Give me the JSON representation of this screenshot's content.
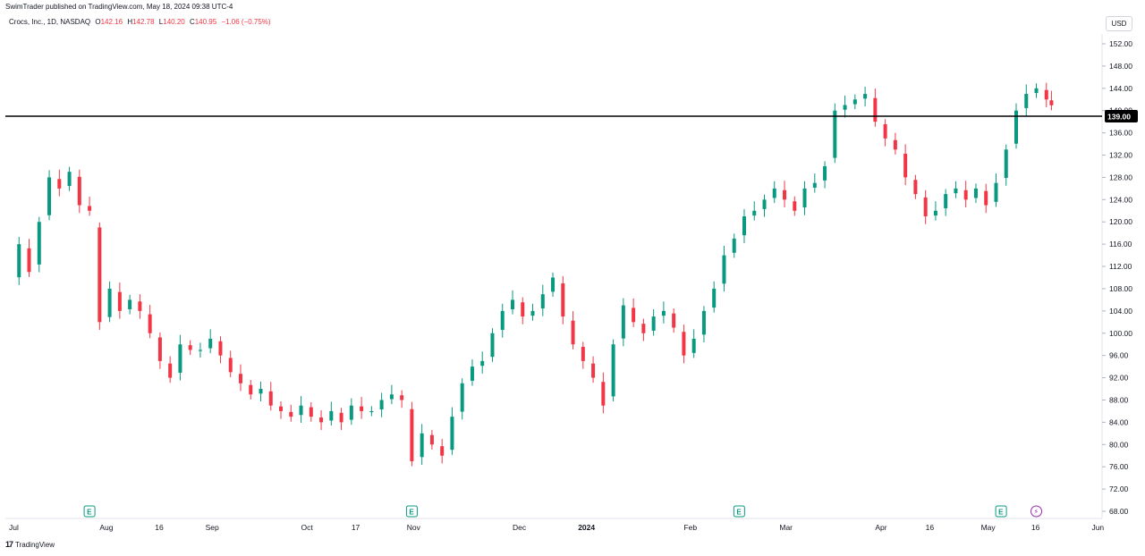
{
  "header": {
    "published": "SwimTrader published on TradingView.com, May 18, 2024 09:38 UTC-4",
    "symbol": "Crocs, Inc., 1D, NASDAQ",
    "o_label": "O",
    "o_value": "142.16",
    "h_label": "H",
    "h_value": "142.78",
    "l_label": "L",
    "l_value": "140.20",
    "c_label": "C",
    "c_value": "140.95",
    "change": "−1.06 (−0.75%)",
    "currency": "USD"
  },
  "brand": {
    "logo": "17",
    "name": "TradingView"
  },
  "colors": {
    "up": "#089981",
    "down": "#f23645",
    "earnings": "#089981",
    "dividend": "#9c27b0"
  },
  "chart_data": {
    "type": "candlestick",
    "title": "Crocs, Inc., 1D, NASDAQ",
    "currency": "USD",
    "ylim": [
      68,
      154
    ],
    "y_ticks": [
      "152.00",
      "148.00",
      "144.00",
      "140.00",
      "136.00",
      "132.00",
      "128.00",
      "124.00",
      "120.00",
      "116.00",
      "112.00",
      "108.00",
      "104.00",
      "100.00",
      "96.00",
      "92.00",
      "88.00",
      "84.00",
      "80.00",
      "76.00",
      "72.00",
      "68.00"
    ],
    "x_ticks": [
      {
        "label": "Jul",
        "day": 0,
        "bold": false
      },
      {
        "label": "Aug",
        "day": 18,
        "bold": false
      },
      {
        "label": "16",
        "day": 29,
        "bold": false
      },
      {
        "label": "Sep",
        "day": 39,
        "bold": false
      },
      {
        "label": "Oct",
        "day": 58,
        "bold": false
      },
      {
        "label": "17",
        "day": 68,
        "bold": false
      },
      {
        "label": "Nov",
        "day": 79,
        "bold": false
      },
      {
        "label": "Dec",
        "day": 100,
        "bold": false
      },
      {
        "label": "2024",
        "day": 113,
        "bold": true
      },
      {
        "label": "Feb",
        "day": 134,
        "bold": false
      },
      {
        "label": "Mar",
        "day": 153,
        "bold": false
      },
      {
        "label": "Apr",
        "day": 172,
        "bold": false
      },
      {
        "label": "16",
        "day": 182,
        "bold": false
      },
      {
        "label": "May",
        "day": 193,
        "bold": false
      },
      {
        "label": "16",
        "day": 203,
        "bold": false
      },
      {
        "label": "Jun",
        "day": 215,
        "bold": false
      }
    ],
    "horizontal_line": {
      "value": 139.0,
      "label": "139.00"
    },
    "events": [
      {
        "type": "earnings",
        "label": "E",
        "day": 16
      },
      {
        "type": "earnings",
        "label": "E",
        "day": 80
      },
      {
        "type": "earnings",
        "label": "E",
        "day": 145
      },
      {
        "type": "earnings",
        "label": "E",
        "day": 197
      },
      {
        "type": "dividend",
        "label": "⚡",
        "day": 204
      }
    ],
    "close_series": [
      {
        "day": 0,
        "close": 109
      },
      {
        "day": 2,
        "close": 116
      },
      {
        "day": 4,
        "close": 111
      },
      {
        "day": 6,
        "close": 120
      },
      {
        "day": 8,
        "close": 128
      },
      {
        "day": 10,
        "close": 126
      },
      {
        "day": 12,
        "close": 129
      },
      {
        "day": 14,
        "close": 123
      },
      {
        "day": 16,
        "close": 122
      },
      {
        "day": 18,
        "close": 102
      },
      {
        "day": 20,
        "close": 108
      },
      {
        "day": 22,
        "close": 104
      },
      {
        "day": 24,
        "close": 106
      },
      {
        "day": 26,
        "close": 104
      },
      {
        "day": 28,
        "close": 100
      },
      {
        "day": 30,
        "close": 95
      },
      {
        "day": 32,
        "close": 92
      },
      {
        "day": 34,
        "close": 98
      },
      {
        "day": 36,
        "close": 97
      },
      {
        "day": 38,
        "close": 97
      },
      {
        "day": 40,
        "close": 99
      },
      {
        "day": 42,
        "close": 96
      },
      {
        "day": 44,
        "close": 93
      },
      {
        "day": 46,
        "close": 91
      },
      {
        "day": 48,
        "close": 89
      },
      {
        "day": 50,
        "close": 90
      },
      {
        "day": 52,
        "close": 87
      },
      {
        "day": 54,
        "close": 86
      },
      {
        "day": 56,
        "close": 85
      },
      {
        "day": 58,
        "close": 87
      },
      {
        "day": 60,
        "close": 85
      },
      {
        "day": 62,
        "close": 84
      },
      {
        "day": 64,
        "close": 86
      },
      {
        "day": 66,
        "close": 84
      },
      {
        "day": 68,
        "close": 87
      },
      {
        "day": 70,
        "close": 86
      },
      {
        "day": 72,
        "close": 86
      },
      {
        "day": 74,
        "close": 88
      },
      {
        "day": 76,
        "close": 89
      },
      {
        "day": 78,
        "close": 88
      },
      {
        "day": 80,
        "close": 77
      },
      {
        "day": 82,
        "close": 82
      },
      {
        "day": 84,
        "close": 80
      },
      {
        "day": 86,
        "close": 78
      },
      {
        "day": 88,
        "close": 85
      },
      {
        "day": 90,
        "close": 91
      },
      {
        "day": 92,
        "close": 94
      },
      {
        "day": 94,
        "close": 95
      },
      {
        "day": 96,
        "close": 100
      },
      {
        "day": 98,
        "close": 104
      },
      {
        "day": 100,
        "close": 106
      },
      {
        "day": 102,
        "close": 103
      },
      {
        "day": 104,
        "close": 104
      },
      {
        "day": 106,
        "close": 107
      },
      {
        "day": 108,
        "close": 110
      },
      {
        "day": 110,
        "close": 103
      },
      {
        "day": 112,
        "close": 98
      },
      {
        "day": 114,
        "close": 95
      },
      {
        "day": 116,
        "close": 92
      },
      {
        "day": 118,
        "close": 87
      },
      {
        "day": 120,
        "close": 98
      },
      {
        "day": 122,
        "close": 105
      },
      {
        "day": 124,
        "close": 102
      },
      {
        "day": 126,
        "close": 100
      },
      {
        "day": 128,
        "close": 103
      },
      {
        "day": 130,
        "close": 104
      },
      {
        "day": 132,
        "close": 101
      },
      {
        "day": 134,
        "close": 96
      },
      {
        "day": 136,
        "close": 99
      },
      {
        "day": 138,
        "close": 104
      },
      {
        "day": 140,
        "close": 108
      },
      {
        "day": 142,
        "close": 114
      },
      {
        "day": 144,
        "close": 117
      },
      {
        "day": 146,
        "close": 121
      },
      {
        "day": 148,
        "close": 122
      },
      {
        "day": 150,
        "close": 124
      },
      {
        "day": 152,
        "close": 126
      },
      {
        "day": 154,
        "close": 124
      },
      {
        "day": 156,
        "close": 122
      },
      {
        "day": 158,
        "close": 126
      },
      {
        "day": 160,
        "close": 127
      },
      {
        "day": 162,
        "close": 130
      },
      {
        "day": 164,
        "close": 140
      },
      {
        "day": 166,
        "close": 141
      },
      {
        "day": 168,
        "close": 142
      },
      {
        "day": 170,
        "close": 143
      },
      {
        "day": 172,
        "close": 138
      },
      {
        "day": 174,
        "close": 135
      },
      {
        "day": 176,
        "close": 133
      },
      {
        "day": 178,
        "close": 128
      },
      {
        "day": 180,
        "close": 125
      },
      {
        "day": 182,
        "close": 121
      },
      {
        "day": 184,
        "close": 122
      },
      {
        "day": 186,
        "close": 125
      },
      {
        "day": 188,
        "close": 126
      },
      {
        "day": 190,
        "close": 124
      },
      {
        "day": 192,
        "close": 126
      },
      {
        "day": 194,
        "close": 123
      },
      {
        "day": 196,
        "close": 127
      },
      {
        "day": 198,
        "close": 133
      },
      {
        "day": 200,
        "close": 140
      },
      {
        "day": 202,
        "close": 143
      },
      {
        "day": 204,
        "close": 144
      },
      {
        "day": 206,
        "close": 142
      },
      {
        "day": 207,
        "close": 140.95
      }
    ]
  }
}
